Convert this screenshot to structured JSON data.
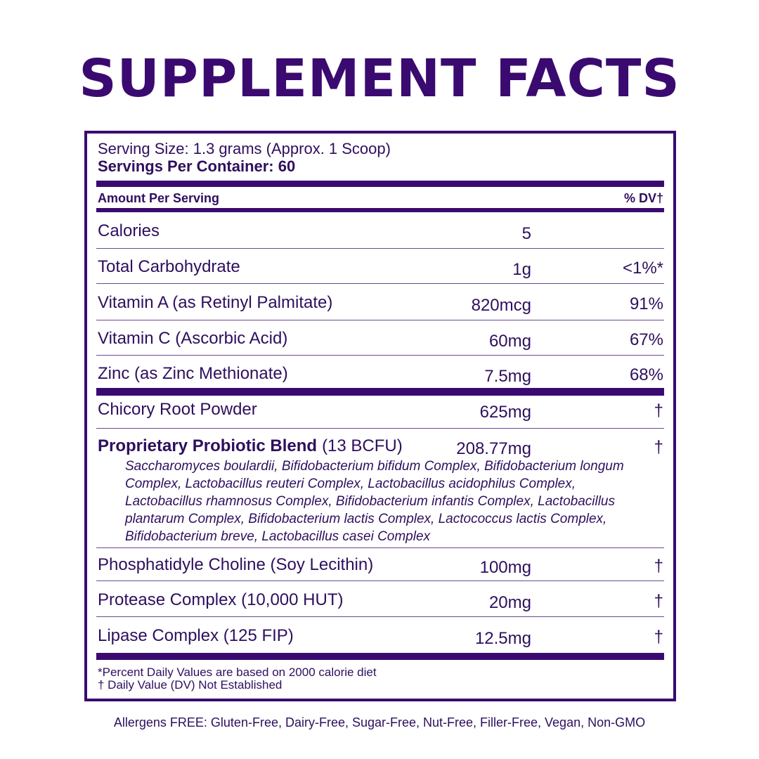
{
  "title": "SUPPLEMENT FACTS",
  "serving": {
    "size": "Serving Size: 1.3 grams (Approx. 1 Scoop)",
    "servings": "Servings Per Container: 60"
  },
  "header": {
    "amount": "Amount Per Serving",
    "dv": "% DV†"
  },
  "nutrients": [
    {
      "name": "Calories",
      "amount": "5"
    },
    {
      "name": "Total Carbohydrate",
      "amount": "1g",
      "dv": "<1%*"
    },
    {
      "name": "Vitamin A (as Retinyl Palmitate)",
      "amount": "820mcg",
      "dv": "91%"
    },
    {
      "name": "Vitamin C (Ascorbic Acid)",
      "amount": "60mg",
      "dv": "67%"
    },
    {
      "name": "Zinc (as Zinc Methionate)",
      "amount": "7.5mg",
      "dv": "68%"
    },
    {
      "name": "Chicory Root Powder",
      "amount": "625mg",
      "dv": "†"
    },
    {
      "name": "Proprietary Probiotic Blend",
      "qualifier": "(13 BCFU)",
      "amount": "208.77mg",
      "dv": "†",
      "ingredients": "Saccharomyces boulardii, Bifidobacterium bifidum Complex, Bifidobacterium longum Complex, Lactobacillus reuteri Complex, Lactobacillus acidophilus Complex, Lactobacillus rhamnosus Complex, Bifidobacterium infantis Complex, Lactobacillus plantarum Complex, Bifidobacterium lactis Complex, Lactococcus lactis Complex, Bifidobacterium breve, Lactobacillus casei Complex"
    },
    {
      "name": "Phosphatidyle Choline (Soy Lecithin)",
      "amount": "100mg",
      "dv": "†"
    },
    {
      "name": "Protease Complex (10,000 HUT)",
      "amount": "20mg",
      "dv": "†"
    },
    {
      "name": "Lipase Complex (125 FIP)",
      "amount": "12.5mg",
      "dv": "†"
    }
  ],
  "footnotes": [
    "*Percent Daily Values are based on 2000 calorie diet",
    "† Daily Value (DV) Not Established"
  ],
  "allergens": "Allergens FREE: Gluten-Free, Dairy-Free, Sugar-Free, Nut-Free, Filler-Free, Vegan, Non-GMO"
}
